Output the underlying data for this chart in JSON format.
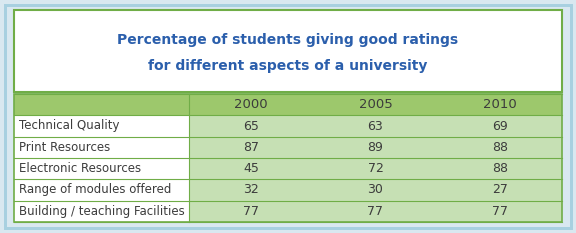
{
  "title_line1": "Percentage of students giving good ratings",
  "title_line2": "for different aspects of a university",
  "title_color": "#2B5FAC",
  "years": [
    "2000",
    "2005",
    "2010"
  ],
  "rows": [
    {
      "label": "Technical Quality",
      "values": [
        65,
        63,
        69
      ]
    },
    {
      "label": "Print Resources",
      "values": [
        87,
        89,
        88
      ]
    },
    {
      "label": "Electronic Resources",
      "values": [
        45,
        72,
        88
      ]
    },
    {
      "label": "Range of modules offered",
      "values": [
        32,
        30,
        27
      ]
    },
    {
      "label": "Building / teaching Facilities",
      "values": [
        77,
        77,
        77
      ]
    }
  ],
  "header_bg": "#9DC86C",
  "data_row_bg": "#C6E0B4",
  "label_col_bg": "#FFFFFF",
  "outer_bg": "#D9E8F0",
  "title_bg": "#FFFFFF",
  "outer_border_color": "#A8D0E0",
  "green_border_color": "#70AD47",
  "divider_color": "#70AD47",
  "text_color": "#3C3C3C",
  "header_text_color": "#3C3C3C",
  "figsize": [
    5.76,
    2.33
  ],
  "dpi": 100
}
